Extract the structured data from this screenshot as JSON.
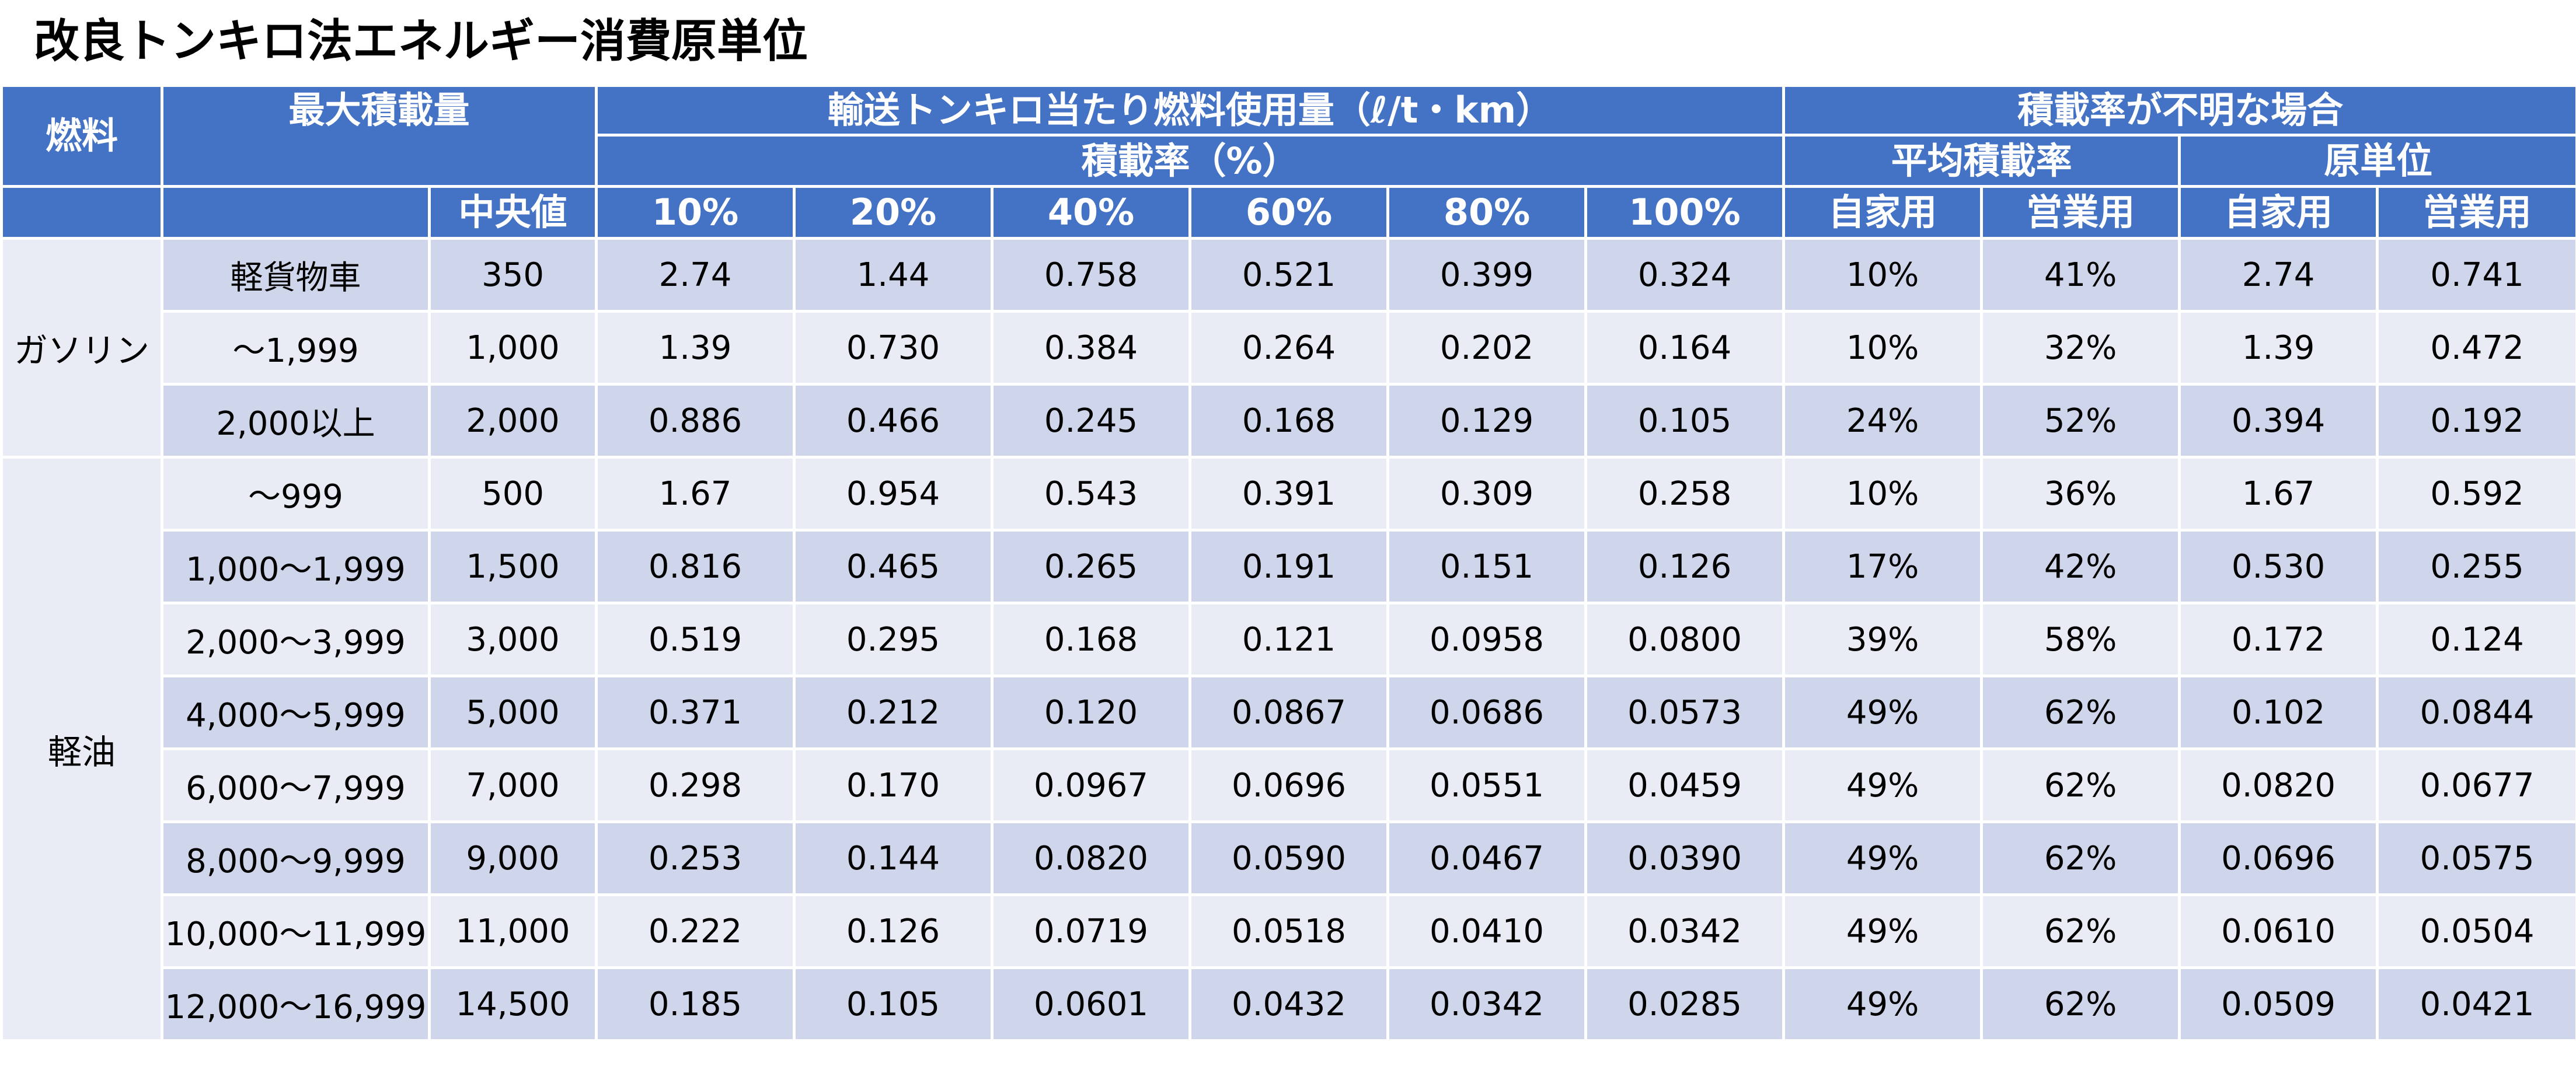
{
  "title": "改良トンキロ法エネルギー消費原単位",
  "header": {
    "fuel": "燃料",
    "max_load": "最大積載量",
    "fuel_use": "輸送トンキロ当たり燃料使用量（ℓ/t・km）",
    "load_rate_pct": "積載率（%）",
    "unknown_load": "積載率が不明な場合",
    "avg_load_rate": "平均積載率",
    "unit_rate": "原単位",
    "median": "中央値",
    "rates": [
      "10%",
      "20%",
      "40%",
      "60%",
      "80%",
      "100%"
    ],
    "own_use": "自家用",
    "business_use": "営業用"
  },
  "groups": [
    {
      "fuel": "ガソリン",
      "rows": [
        {
          "range": "軽貨物車",
          "median": "350",
          "v": [
            "2.74",
            "1.44",
            "0.758",
            "0.521",
            "0.399",
            "0.324"
          ],
          "avg_own": "10%",
          "avg_bus": "41%",
          "unit_own": "2.74",
          "unit_bus": "0.741"
        },
        {
          "range": "～1,999",
          "median": "1,000",
          "v": [
            "1.39",
            "0.730",
            "0.384",
            "0.264",
            "0.202",
            "0.164"
          ],
          "avg_own": "10%",
          "avg_bus": "32%",
          "unit_own": "1.39",
          "unit_bus": "0.472"
        },
        {
          "range": "2,000以上",
          "median": "2,000",
          "v": [
            "0.886",
            "0.466",
            "0.245",
            "0.168",
            "0.129",
            "0.105"
          ],
          "avg_own": "24%",
          "avg_bus": "52%",
          "unit_own": "0.394",
          "unit_bus": "0.192"
        }
      ]
    },
    {
      "fuel": "軽油",
      "rows": [
        {
          "range": "～999",
          "median": "500",
          "v": [
            "1.67",
            "0.954",
            "0.543",
            "0.391",
            "0.309",
            "0.258"
          ],
          "avg_own": "10%",
          "avg_bus": "36%",
          "unit_own": "1.67",
          "unit_bus": "0.592"
        },
        {
          "range": "1,000～1,999",
          "median": "1,500",
          "v": [
            "0.816",
            "0.465",
            "0.265",
            "0.191",
            "0.151",
            "0.126"
          ],
          "avg_own": "17%",
          "avg_bus": "42%",
          "unit_own": "0.530",
          "unit_bus": "0.255"
        },
        {
          "range": "2,000～3,999",
          "median": "3,000",
          "v": [
            "0.519",
            "0.295",
            "0.168",
            "0.121",
            "0.0958",
            "0.0800"
          ],
          "avg_own": "39%",
          "avg_bus": "58%",
          "unit_own": "0.172",
          "unit_bus": "0.124"
        },
        {
          "range": "4,000～5,999",
          "median": "5,000",
          "v": [
            "0.371",
            "0.212",
            "0.120",
            "0.0867",
            "0.0686",
            "0.0573"
          ],
          "avg_own": "49%",
          "avg_bus": "62%",
          "unit_own": "0.102",
          "unit_bus": "0.0844"
        },
        {
          "range": "6,000～7,999",
          "median": "7,000",
          "v": [
            "0.298",
            "0.170",
            "0.0967",
            "0.0696",
            "0.0551",
            "0.0459"
          ],
          "avg_own": "49%",
          "avg_bus": "62%",
          "unit_own": "0.0820",
          "unit_bus": "0.0677"
        },
        {
          "range": "8,000～9,999",
          "median": "9,000",
          "v": [
            "0.253",
            "0.144",
            "0.0820",
            "0.0590",
            "0.0467",
            "0.0390"
          ],
          "avg_own": "49%",
          "avg_bus": "62%",
          "unit_own": "0.0696",
          "unit_bus": "0.0575"
        },
        {
          "range": "10,000～11,999",
          "median": "11,000",
          "v": [
            "0.222",
            "0.126",
            "0.0719",
            "0.0518",
            "0.0410",
            "0.0342"
          ],
          "avg_own": "49%",
          "avg_bus": "62%",
          "unit_own": "0.0610",
          "unit_bus": "0.0504"
        },
        {
          "range": "12,000～16,999",
          "median": "14,500",
          "v": [
            "0.185",
            "0.105",
            "0.0601",
            "0.0432",
            "0.0342",
            "0.0285"
          ],
          "avg_own": "49%",
          "avg_bus": "62%",
          "unit_own": "0.0509",
          "unit_bus": "0.0421"
        }
      ]
    }
  ],
  "colors": {
    "header_bg": "#4472c4",
    "header_text": "#ffffff",
    "row_dark": "#cfd5ea",
    "row_light": "#e9ebf5",
    "border": "#ffffff"
  }
}
